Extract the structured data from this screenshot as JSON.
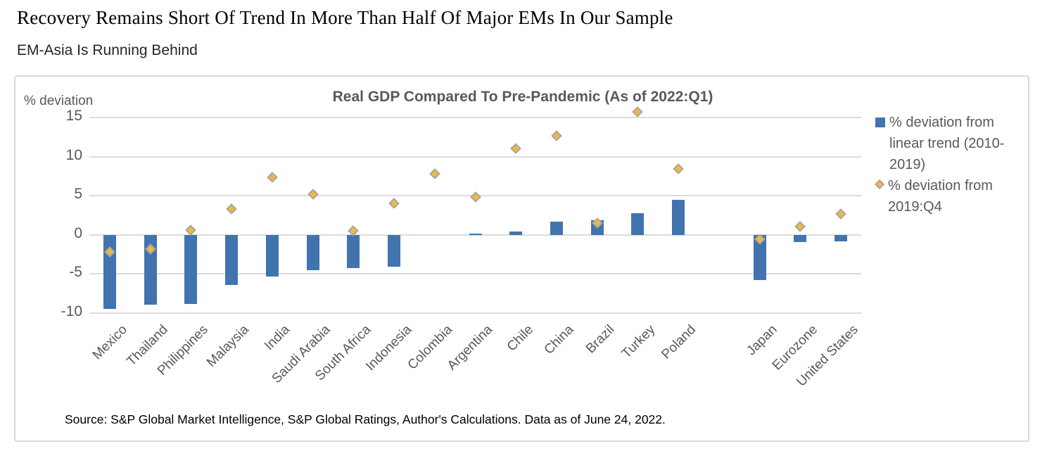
{
  "header": {
    "title": "Recovery Remains Short Of Trend In More Than Half Of Major EMs In Our Sample",
    "subtitle": "EM-Asia Is Running Behind"
  },
  "colors": {
    "bar": "#4174AE",
    "diamond_fill": "#F0B93C",
    "diamond_border": "#A6A6A6",
    "gridline": "#DCDCDC",
    "axis_text": "#595959",
    "panel_border": "#D9D9D9"
  },
  "chart_data": {
    "type": "bar",
    "title": "Real GDP Compared To Pre-Pandemic (As of 2022:Q1)",
    "y_axis_label": "% deviation",
    "y_ticks": [
      15,
      10,
      5,
      0,
      -5,
      -10
    ],
    "ylim": [
      -10,
      16
    ],
    "grid": true,
    "legend_position": "right",
    "x_label_rotation": -45,
    "categories": [
      "Mexico",
      "Thailand",
      "Philippines",
      "Malaysia",
      "India",
      "Saudi Arabia",
      "South Africa",
      "Indonesia",
      "Colombia",
      "Argentina",
      "Chile",
      "China",
      "Brazil",
      "Turkey",
      "Poland",
      "",
      "Japan",
      "Eurozone",
      "United States"
    ],
    "series": [
      {
        "name": "% deviation from linear trend (2010-2019)",
        "marker": "bar",
        "color": "#4174AE",
        "values": [
          -9.5,
          -8.9,
          -8.8,
          -6.4,
          -5.3,
          -4.5,
          -4.2,
          -4.1,
          0,
          0.2,
          0.4,
          1.7,
          1.9,
          2.8,
          4.5,
          null,
          -5.8,
          -0.9,
          -0.8
        ]
      },
      {
        "name": "% deviation from 2019:Q4",
        "marker": "diamond",
        "color": "#F0B93C",
        "values": [
          -2.2,
          -1.8,
          0.6,
          3.3,
          7.4,
          5.2,
          0.5,
          4.0,
          7.8,
          4.8,
          11.0,
          12.7,
          1.5,
          15.7,
          8.4,
          null,
          -0.6,
          1.1,
          2.7
        ]
      }
    ],
    "source_note": "Source: S&P Global Market Intelligence, S&P Global Ratings, Author's Calculations. Data as of June 24, 2022."
  }
}
